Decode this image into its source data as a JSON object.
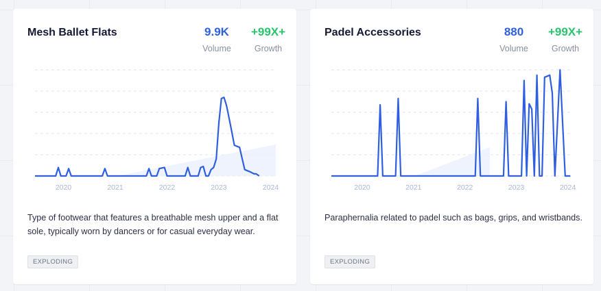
{
  "cards": [
    {
      "title": "Mesh Ballet Flats",
      "volume": "9.9K",
      "volume_label": "Volume",
      "growth": "+99X+",
      "growth_label": "Growth",
      "description": "Type of footwear that features a breathable mesh upper and a flat sole, typically worn by dancers or for casual everyday wear.",
      "tag": "EXPLODING"
    },
    {
      "title": "Padel Accessories",
      "volume": "880",
      "volume_label": "Volume",
      "growth": "+99X+",
      "growth_label": "Growth",
      "description": "Paraphernalia related to padel such as bags, grips, and wristbands.",
      "tag": "EXPLODING"
    }
  ],
  "colors": {
    "line": "#2f5fe0",
    "volume": "#2f5fe0",
    "growth": "#29c46d",
    "tick": "#a8b6d8"
  },
  "chart_data": [
    {
      "type": "line",
      "x_ticks": [
        "2020",
        "2021",
        "2022",
        "2023",
        "2024"
      ],
      "x_range": [
        2019.45,
        2024.1
      ],
      "ylim": [
        0,
        100
      ],
      "grid": true,
      "series": [
        {
          "x": [
            2019.45,
            2019.85,
            2019.9,
            2019.95,
            2020.05,
            2020.1,
            2020.15,
            2020.75,
            2020.8,
            2020.85,
            2021.6,
            2021.65,
            2021.7,
            2021.8,
            2021.85,
            2021.95,
            2022.0,
            2022.05,
            2022.35,
            2022.4,
            2022.45,
            2022.55,
            2022.6,
            2022.65,
            2022.7,
            2022.75,
            2022.8,
            2022.85,
            2022.9,
            2022.95,
            2023.0,
            2023.05,
            2023.1,
            2023.15,
            2023.22,
            2023.3,
            2023.4,
            2023.5,
            2023.55,
            2023.6,
            2023.68,
            2023.72,
            2023.78
          ],
          "y": [
            0,
            0,
            8,
            0,
            0,
            7,
            0,
            0,
            7,
            0,
            0,
            7,
            0,
            0,
            7,
            8,
            0,
            0,
            0,
            8,
            0,
            0,
            0,
            8,
            9,
            0,
            0,
            6,
            8,
            16,
            50,
            73,
            74,
            66,
            49,
            29,
            27,
            6,
            5,
            4,
            2,
            2,
            0
          ]
        }
      ]
    },
    {
      "type": "line",
      "x_ticks": [
        "2020",
        "2021",
        "2022",
        "2023",
        "2024"
      ],
      "x_range": [
        2019.4,
        2024.1
      ],
      "ylim": [
        0,
        100
      ],
      "grid": true,
      "series": [
        {
          "x": [
            2019.4,
            2020.3,
            2020.35,
            2020.4,
            2020.65,
            2020.7,
            2020.75,
            2022.2,
            2022.25,
            2022.3,
            2022.75,
            2022.8,
            2022.85,
            2023.1,
            2023.15,
            2023.2,
            2023.25,
            2023.3,
            2023.35,
            2023.4,
            2023.45,
            2023.5,
            2023.55,
            2023.65,
            2023.7,
            2023.75,
            2023.85,
            2023.95,
            2024.0,
            2024.05
          ],
          "y": [
            0,
            0,
            67,
            0,
            0,
            73,
            0,
            0,
            73,
            0,
            0,
            70,
            0,
            0,
            90,
            0,
            68,
            63,
            0,
            95,
            0,
            0,
            93,
            95,
            78,
            0,
            100,
            0,
            0,
            0
          ]
        }
      ]
    }
  ]
}
